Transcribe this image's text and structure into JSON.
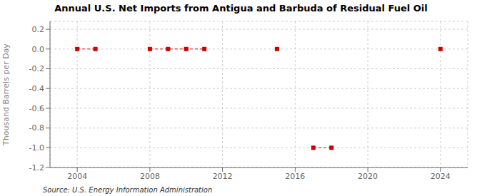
{
  "chart_data": {
    "type": "line",
    "title": "Annual U.S. Net Imports from Antigua and Barbuda of Residual Fuel Oil",
    "ylabel": "Thousand Barrels per Day",
    "source": "Source: U.S. Energy Information Administration",
    "x": [
      2004,
      2005,
      2006,
      2007,
      2008,
      2009,
      2010,
      2011,
      2012,
      2013,
      2014,
      2015,
      2016,
      2017,
      2018,
      2019,
      2020,
      2021,
      2022,
      2023,
      2024
    ],
    "values": [
      0,
      0,
      null,
      null,
      0,
      0,
      0,
      0,
      null,
      null,
      null,
      0,
      null,
      -1.0,
      -1.0,
      null,
      null,
      null,
      null,
      null,
      0
    ],
    "color": "#cc0000",
    "marker": "square",
    "line_style": "dashed",
    "xlim": [
      2002.5,
      2025.5
    ],
    "ylim": [
      -1.2,
      0.28
    ],
    "xticks": [
      2004,
      2008,
      2012,
      2016,
      2020,
      2024
    ],
    "yticks": [
      0.2,
      {
        "value": 0,
        "label": "0.0"
      },
      -0.2,
      -0.4,
      -0.6,
      -0.8,
      {
        "value": -1,
        "label": "-1.0"
      },
      -1.2
    ],
    "grid": true
  }
}
